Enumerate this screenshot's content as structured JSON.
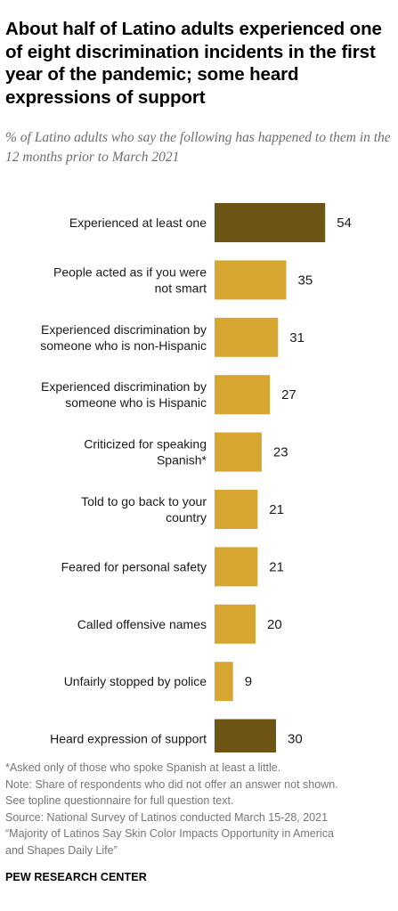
{
  "title": "About half of Latino adults experienced one of eight discrimination incidents in the first year of the pandemic; some heard expressions of support",
  "subtitle": "% of Latino adults who say the following has happened to them in the 12 months prior to March 2021",
  "colors": {
    "highlight": "#6d5516",
    "standard": "#d6a630",
    "label": "#1a1a1a",
    "value": "#1a1a1a"
  },
  "chart_data": {
    "type": "bar",
    "orientation": "horizontal",
    "categories": [
      [
        "Experienced at least one"
      ],
      [
        "People acted as if you were",
        "not smart"
      ],
      [
        "Experienced discrimination by",
        "someone who is non-Hispanic"
      ],
      [
        "Experienced discrimination by",
        "someone who is Hispanic"
      ],
      [
        "Criticized for speaking",
        "Spanish*"
      ],
      [
        "Told to go back to your",
        "country"
      ],
      [
        "Feared for personal safety"
      ],
      [
        "Called offensive names"
      ],
      [
        "Unfairly stopped by police"
      ],
      [
        "Heard expression of support"
      ]
    ],
    "values": [
      54,
      35,
      31,
      27,
      23,
      21,
      21,
      20,
      9,
      30
    ],
    "highlighted": [
      true,
      false,
      false,
      false,
      false,
      false,
      false,
      false,
      false,
      true
    ],
    "unit": "%"
  },
  "notes": [
    "*Asked only of those who spoke Spanish at least a little.",
    "Note: Share of respondents who did not offer an answer not shown.",
    "See topline questionnaire for full question text.",
    "Source: National Survey of Latinos conducted March 15-28, 2021",
    "“Majority of Latinos Say Skin Color Impacts Opportunity in America",
    "and Shapes Daily Life”"
  ],
  "brand": "PEW RESEARCH CENTER"
}
